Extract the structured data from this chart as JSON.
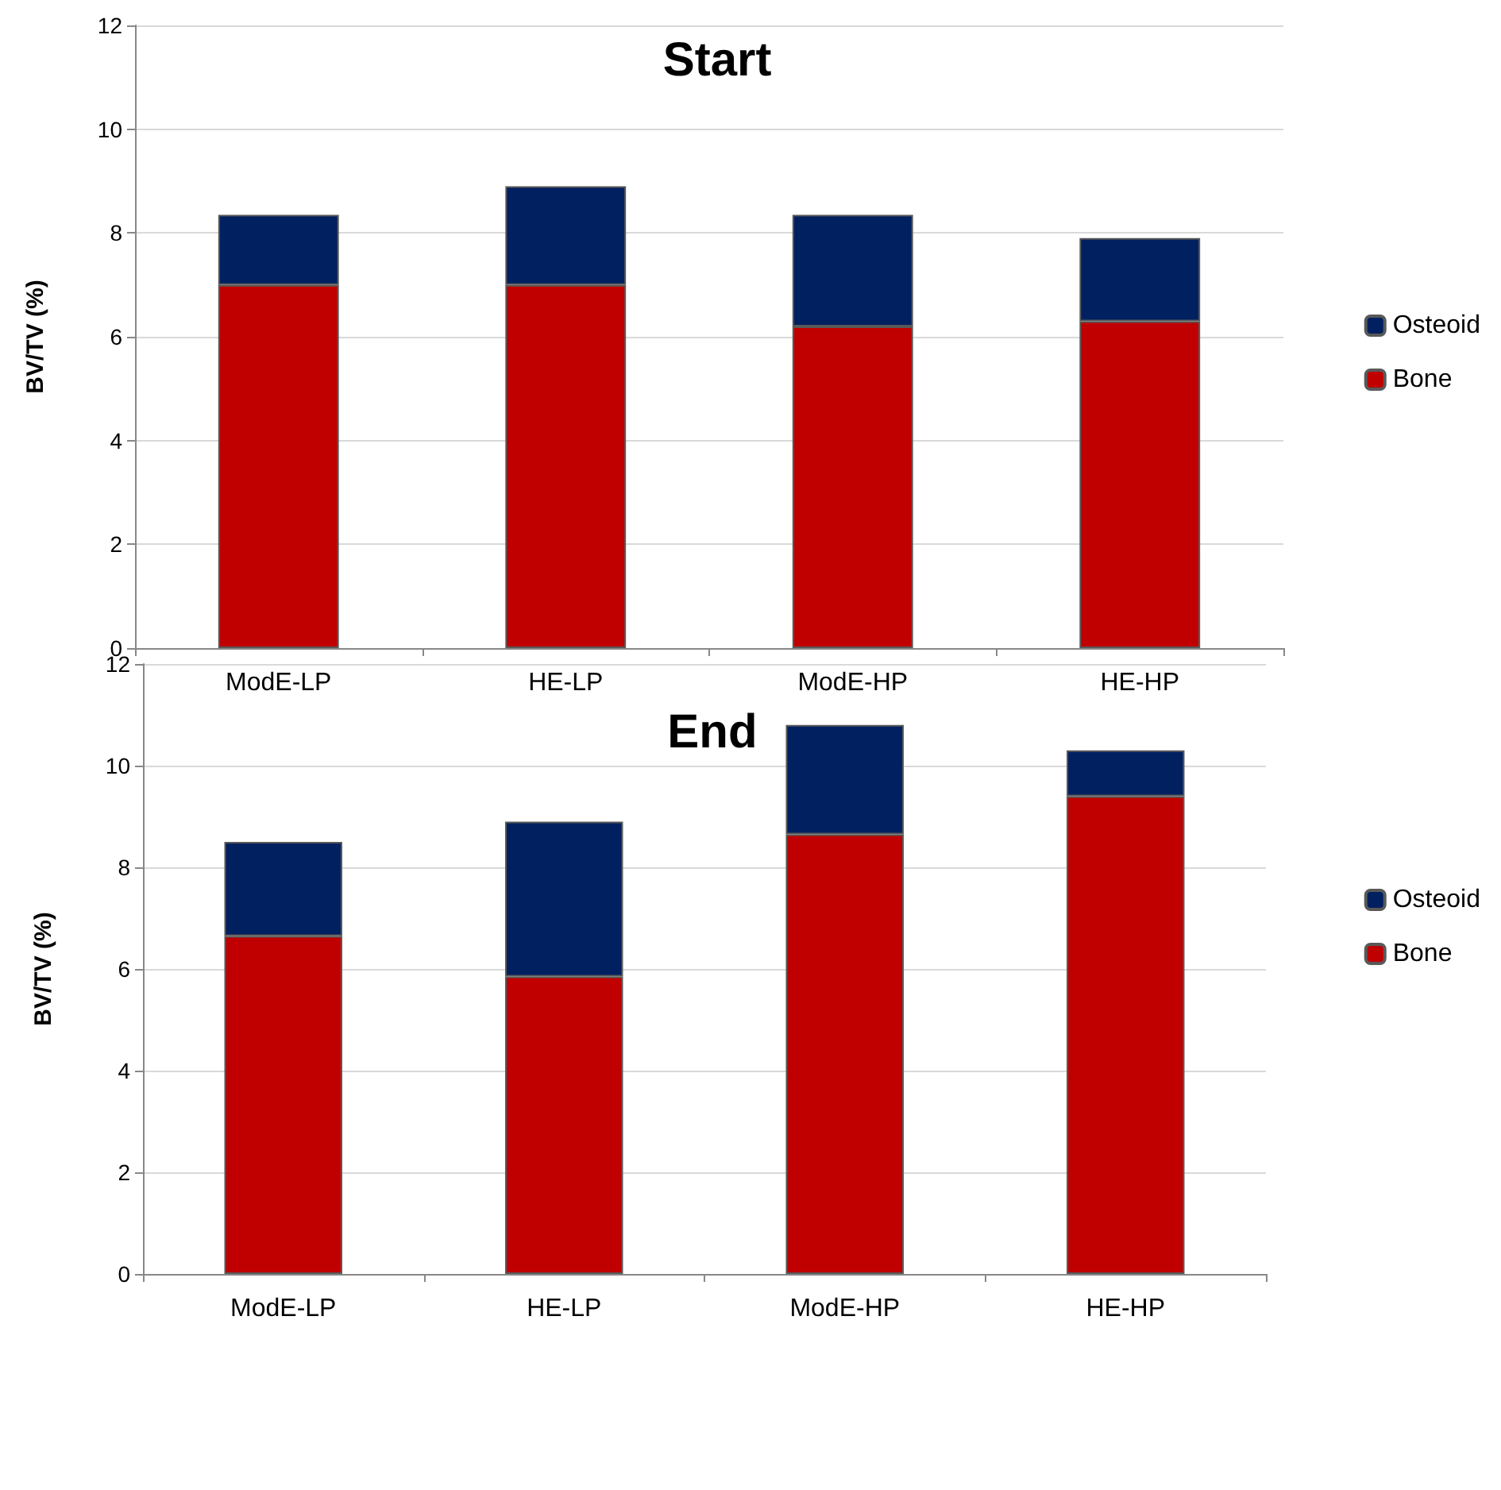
{
  "chart_data": [
    {
      "type": "bar",
      "title": "Start",
      "ylabel": "BV/TV (%)",
      "categories": [
        "ModE-LP",
        "HE-LP",
        "ModE-HP",
        "HE-HP"
      ],
      "stacked": true,
      "series": [
        {
          "name": "Bone",
          "color": "#c00000",
          "values": [
            7.0,
            7.0,
            6.2,
            6.3
          ]
        },
        {
          "name": "Osteoid",
          "color": "#002060",
          "values": [
            1.35,
            1.9,
            2.15,
            1.6
          ]
        }
      ],
      "ylim": [
        0,
        12
      ],
      "yticks": [
        0,
        2,
        4,
        6,
        8,
        10,
        12
      ],
      "grid": "y",
      "legend": "right"
    },
    {
      "type": "bar",
      "title": "End",
      "ylabel": "BV/TV (%)",
      "categories": [
        "ModE-LP",
        "HE-LP",
        "ModE-HP",
        "HE-HP"
      ],
      "stacked": true,
      "series": [
        {
          "name": "Bone",
          "color": "#c00000",
          "values": [
            6.65,
            5.85,
            8.65,
            9.4
          ]
        },
        {
          "name": "Osteoid",
          "color": "#002060",
          "values": [
            1.85,
            3.05,
            2.15,
            0.9
          ]
        }
      ],
      "ylim": [
        0,
        12
      ],
      "yticks": [
        0,
        2,
        4,
        6,
        8,
        10,
        12
      ],
      "grid": "y",
      "legend": "right"
    }
  ]
}
